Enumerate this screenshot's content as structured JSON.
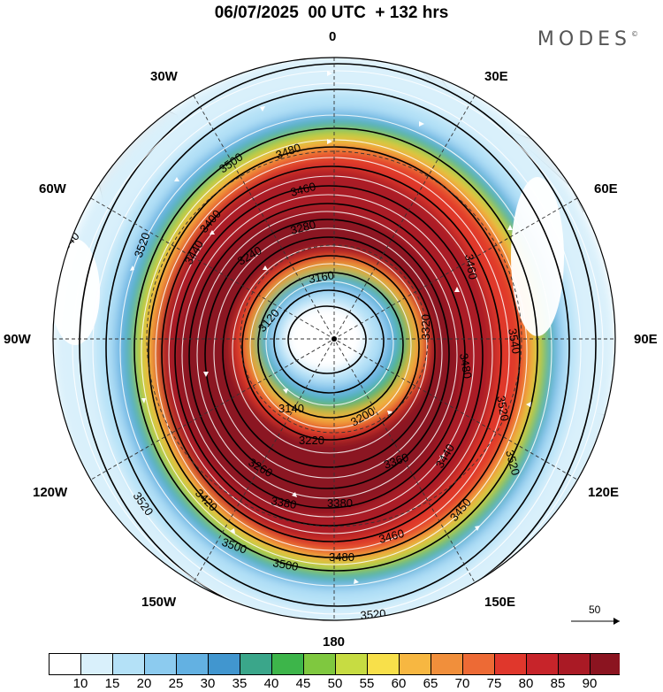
{
  "title": "06/07/2025  00 UTC  + 132 hrs",
  "brand": {
    "name": "MODES",
    "mark": "©"
  },
  "longitude_labels": {
    "lon_0": "0",
    "lon_30e": "30E",
    "lon_60e": "60E",
    "lon_90e": "90E",
    "lon_120e": "120E",
    "lon_150e": "150E",
    "lon_180": "180",
    "lon_150w": "150W",
    "lon_120w": "120W",
    "lon_90w": "90W",
    "lon_60w": "60W",
    "lon_30w": "30W"
  },
  "contour_labels": [
    "3520",
    "3520",
    "3500",
    "3480",
    "3480",
    "3460",
    "3440",
    "3400",
    "3280",
    "3240",
    "3160",
    "3120",
    "3140",
    "3320",
    "3200",
    "3220",
    "3260",
    "3380",
    "3380",
    "3360",
    "3340",
    "3460",
    "3480",
    "3500",
    "3520",
    "3540",
    "3540",
    "3520",
    "3520",
    "3500",
    "3450",
    "3460",
    "3480",
    "3500",
    "3520",
    "3500",
    "3400",
    "3540",
    "3520"
  ],
  "vector_scale": {
    "label": "50"
  },
  "legend": {
    "ticks": [
      "10",
      "15",
      "20",
      "25",
      "30",
      "35",
      "40",
      "45",
      "50",
      "55",
      "60",
      "65",
      "70",
      "75",
      "80",
      "85",
      "90"
    ],
    "colors": [
      "#ffffff",
      "#d9f0fb",
      "#b4e1f7",
      "#8ccbef",
      "#63b1e2",
      "#4196cf",
      "#3aa68a",
      "#3db54a",
      "#7fc83f",
      "#c7dc42",
      "#f8e04a",
      "#f7b741",
      "#f18f3b",
      "#ed6a35",
      "#e0372c",
      "#c7242a",
      "#aa1a25",
      "#8b1420"
    ]
  },
  "map": {
    "projection": "south-polar-stereographic",
    "field": "wind speed (shaded), 500 hPa height contours, streamlines"
  }
}
